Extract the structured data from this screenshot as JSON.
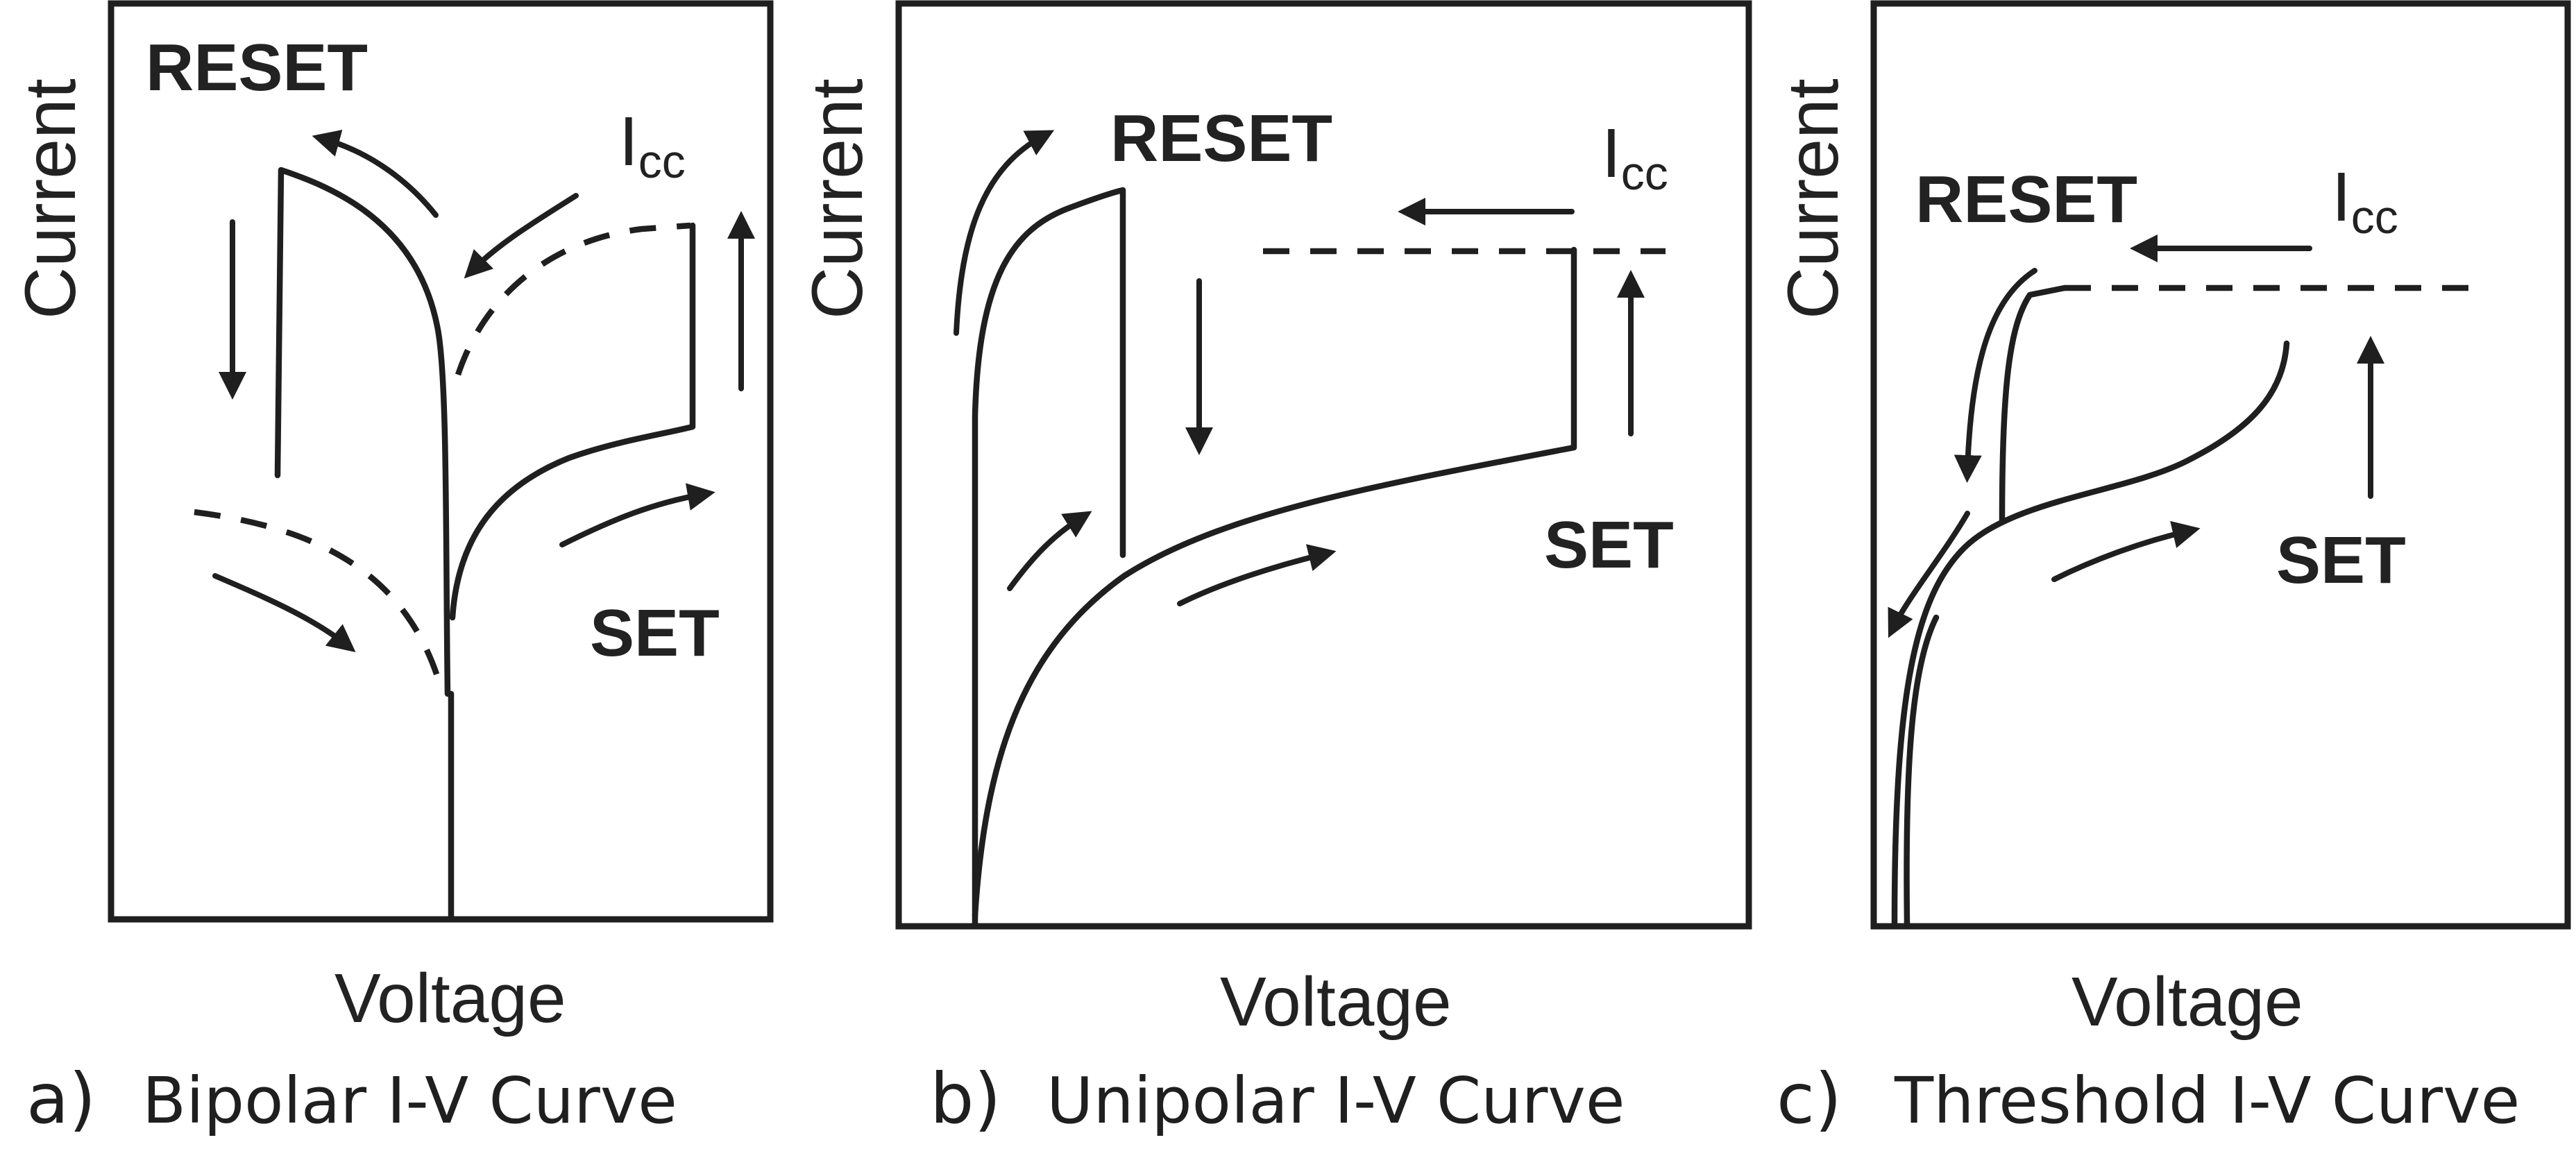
{
  "panels": [
    {
      "caption_letter": "a)",
      "caption_text": "Bipolar I-V Curve",
      "y_label": "Current",
      "x_label": "Voltage",
      "reset_label": "RESET",
      "set_label": "SET",
      "icc_main": "I",
      "icc_sub": "cc"
    },
    {
      "caption_letter": "b)",
      "caption_text": "Unipolar I-V Curve",
      "y_label": "Current",
      "x_label": "Voltage",
      "reset_label": "RESET",
      "set_label": "SET",
      "icc_main": "I",
      "icc_sub": "cc"
    },
    {
      "caption_letter": "c)",
      "caption_text": "Threshold I-V Curve",
      "y_label": "Current",
      "x_label": "Voltage",
      "reset_label": "RESET",
      "set_label": "SET",
      "icc_main": "I",
      "icc_sub": "cc"
    }
  ]
}
